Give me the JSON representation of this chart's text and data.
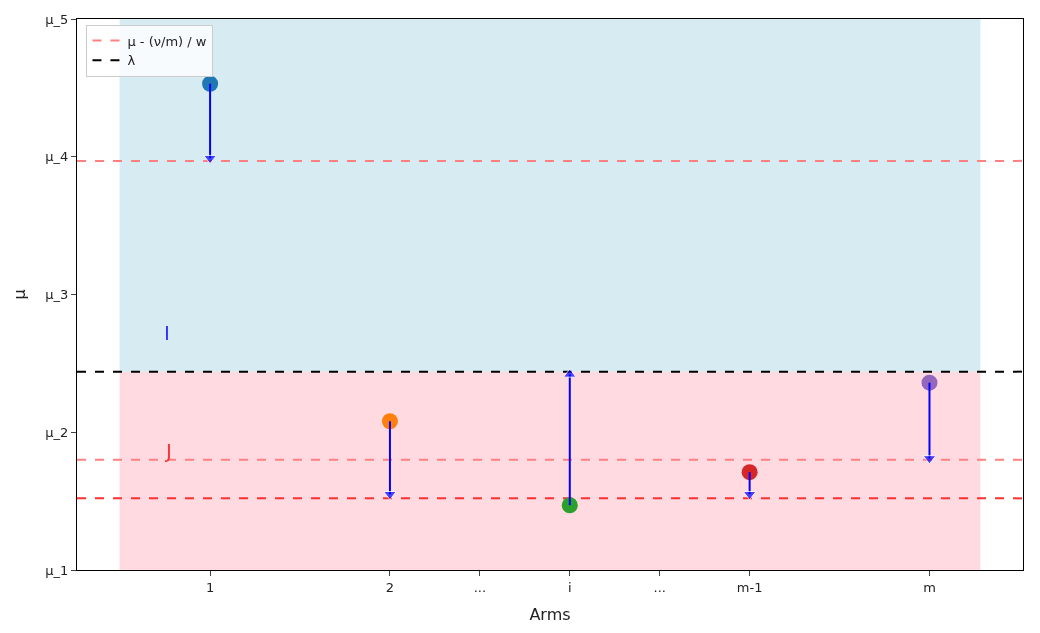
{
  "chart_data": {
    "type": "scatter",
    "xlabel": "Arms",
    "ylabel": "μ",
    "xlim": [
      0.26,
      5.52
    ],
    "ylim": [
      1,
      5
    ],
    "xticks": [
      1,
      2,
      {
        "value": 2.5,
        "label": "..."
      },
      {
        "value": 3,
        "label": "i"
      },
      {
        "value": 3.5,
        "label": "..."
      },
      {
        "value": 4,
        "label": "m-1"
      },
      {
        "value": 5,
        "label": "m"
      }
    ],
    "yticks": [
      {
        "value": 1,
        "label": "μ_1"
      },
      {
        "value": 2,
        "label": "μ_2"
      },
      {
        "value": 3,
        "label": "μ_3"
      },
      {
        "value": 4,
        "label": "μ_4"
      },
      {
        "value": 5,
        "label": "μ_5"
      }
    ],
    "series": [
      {
        "x": [
          1,
          2,
          3,
          4,
          5
        ],
        "values": [
          4.53,
          2.08,
          1.47,
          1.71,
          2.36
        ],
        "colors": [
          "#1f77b4",
          "#ff7f0e",
          "#2ca02c",
          "#d62728",
          "#9467bd"
        ],
        "marker": "circle"
      },
      {
        "type": "line",
        "x": [
          1,
          1
        ],
        "values": [
          4.53,
          3.99
        ],
        "color": "#0000ff"
      },
      {
        "type": "line",
        "x": [
          2,
          2
        ],
        "values": [
          2.08,
          1.55
        ],
        "color": "#0000ff"
      },
      {
        "type": "line",
        "x": [
          3,
          3
        ],
        "values": [
          1.47,
          2.42
        ],
        "color": "#0000ff"
      },
      {
        "type": "line",
        "x": [
          4,
          4
        ],
        "values": [
          1.71,
          1.55
        ],
        "color": "#0000ff"
      },
      {
        "type": "line",
        "x": [
          5,
          5
        ],
        "values": [
          2.36,
          1.81
        ],
        "color": "#0000ff"
      }
    ],
    "ref_lines": [
      {
        "axis": "y",
        "value": 3.97,
        "label": "μ - (ν/m) / w",
        "color": "#ff8080",
        "line_style": "dashed"
      },
      {
        "axis": "y",
        "value": 2.44,
        "label": "λ",
        "color": "#000000",
        "line_style": "dashed"
      },
      {
        "axis": "y",
        "value": 1.8,
        "color": "#ff8080",
        "line_style": "dashed"
      },
      {
        "axis": "y",
        "value": 1.52,
        "color": "#ff3030",
        "line_style": "dashed"
      }
    ],
    "bands": [
      {
        "axis": "y",
        "from": 2.44,
        "to": 5,
        "color": "#add8e6"
      },
      {
        "axis": "y",
        "from": 1,
        "to": 2.44,
        "color": "#ffb6c1"
      }
    ],
    "annotations": [
      "I",
      "J"
    ],
    "legend": "top left",
    "grid": false
  }
}
